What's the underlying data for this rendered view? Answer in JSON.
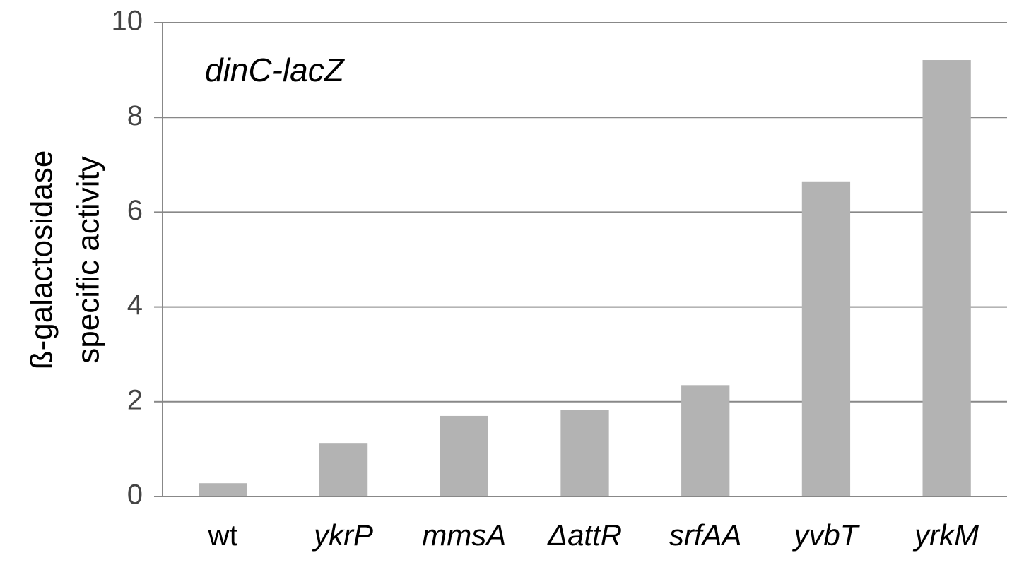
{
  "chart_data": {
    "type": "bar",
    "y_label": [
      "ß-galactosidase",
      "specific activity"
    ],
    "annotation": "dinC-lacZ",
    "categories": [
      "wt",
      "ykrP",
      "mmsA",
      "ΔattR",
      "srfAA",
      "yvbT",
      "yrkM"
    ],
    "values": [
      0.28,
      1.13,
      1.7,
      1.83,
      2.35,
      6.65,
      9.21
    ],
    "color": "#b3b3b3",
    "ylim": [
      0,
      10
    ],
    "yticks": [
      0,
      2,
      4,
      6,
      8,
      10
    ],
    "grid": true
  }
}
